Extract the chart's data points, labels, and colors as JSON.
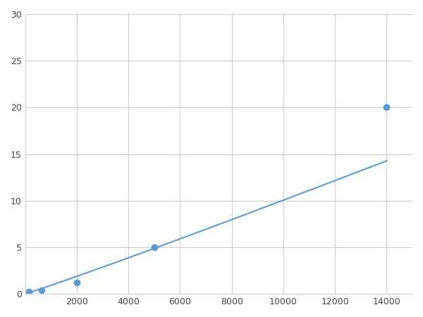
{
  "x_data": [
    156,
    625,
    2000,
    5000,
    14000
  ],
  "y_data": [
    0.2,
    0.4,
    1.2,
    5.0,
    20.0
  ],
  "line_color": "#5b9bd5",
  "marker_color": "#5b9bd5",
  "marker_size": 6,
  "line_width": 1.5,
  "xlim": [
    0,
    15000
  ],
  "ylim": [
    0,
    30
  ],
  "xticks": [
    2000,
    4000,
    6000,
    8000,
    10000,
    12000,
    14000
  ],
  "yticks": [
    0,
    5,
    10,
    15,
    20,
    25,
    30
  ],
  "grid": true,
  "grid_color": "#cccccc",
  "background_color": "#ffffff",
  "figsize": [
    6.0,
    4.5
  ],
  "dpi": 100
}
